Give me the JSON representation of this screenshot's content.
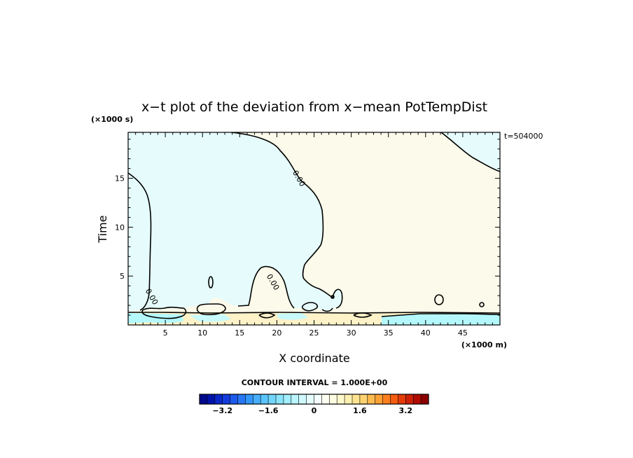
{
  "chart_data": {
    "type": "contour",
    "title": "x−t plot of the deviation from x−mean PotTempDist",
    "xlabel": "X coordinate",
    "ylabel": "Time",
    "x_unit": "(×1000 m)",
    "y_unit": "(×1000 s)",
    "time_annotation": "t=504000",
    "xlim": [
      0,
      50
    ],
    "ylim": [
      0,
      19.7
    ],
    "x_ticks": [
      5,
      10,
      15,
      20,
      25,
      30,
      35,
      40,
      45
    ],
    "y_ticks": [
      5,
      10,
      15
    ],
    "contour_interval_text": "CONTOUR INTERVAL = 1.000E+00",
    "contour_labels": [
      {
        "text": "0.00",
        "x": 23.0,
        "y": 15.0
      },
      {
        "text": "0.00",
        "x": 19.5,
        "y": 4.4
      },
      {
        "text": "0.00",
        "x": 3.2,
        "y": 2.9
      }
    ],
    "regions": [
      {
        "value": "negative",
        "description": "large negative (cool) region",
        "color": "#e6fcfc"
      },
      {
        "value": "positive",
        "description": "positive (warm) region",
        "color": "#fcfaea"
      },
      {
        "value": "near_surface",
        "description": "near-surface layer",
        "color": "#fdf2c8"
      }
    ],
    "colorbar": {
      "min": -4.0,
      "max": 4.0,
      "tick_labels": [
        "−3.2",
        "−1.6",
        "0",
        "1.6",
        "3.2"
      ],
      "tick_values": [
        -3.2,
        -1.6,
        0,
        1.6,
        3.2
      ],
      "colors": [
        "#000a8c",
        "#0014a8",
        "#0a28c8",
        "#143cdc",
        "#1e5aec",
        "#2878f4",
        "#3296fa",
        "#46aefc",
        "#5ac4fc",
        "#72d6fc",
        "#8ae4fc",
        "#a2eefc",
        "#baf4fc",
        "#d0f8fc",
        "#e4fcfc",
        "#f4fefe",
        "#fefef2",
        "#fefce2",
        "#fef8cc",
        "#fef0b0",
        "#fee490",
        "#fed270",
        "#febc50",
        "#fea034",
        "#fc801e",
        "#f45e10",
        "#e43c08",
        "#cc2004",
        "#b00c02",
        "#8c0000"
      ]
    }
  }
}
